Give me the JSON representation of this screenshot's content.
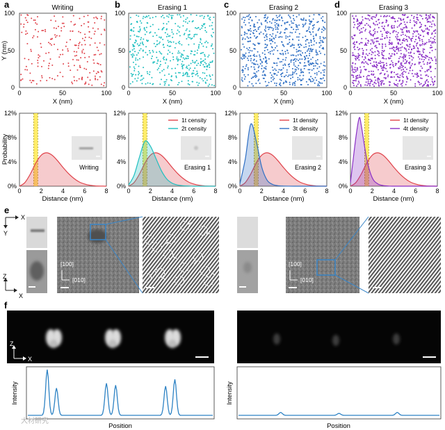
{
  "panel_letters": [
    "a",
    "b",
    "c",
    "d",
    "e",
    "f"
  ],
  "colors": {
    "writing": "#e0434b",
    "erasing1": "#1fbfc0",
    "erasing2": "#2e6fc4",
    "erasing3": "#8a2fc6",
    "reference_fill": "#f3a2a2",
    "threshold_band": "#ffe94d",
    "profile_line": "#2c82c4"
  },
  "scatter_titles": [
    "Writing",
    "Erasing 1",
    "Erasing 2",
    "Erasing 3"
  ],
  "scatter_axes": {
    "xlabel": "X (nm)",
    "ylabel": "Y (nm)",
    "xticks": [
      "0",
      "50",
      "100"
    ],
    "yticks": [
      "0",
      "50",
      "100"
    ]
  },
  "distribution_axes": {
    "xlabel": "Distance (nm)",
    "ylabel": "Probability",
    "xticks": [
      "0",
      "2",
      "4",
      "6",
      "8"
    ],
    "yticks": [
      "0%",
      "4%",
      "8%",
      "12%"
    ]
  },
  "distribution_panels": [
    {
      "inset_label": "Writing",
      "legend": []
    },
    {
      "inset_label": "Erasing 1",
      "legend": [
        "1t censity",
        "2t censity"
      ]
    },
    {
      "inset_label": "Erasing 2",
      "legend": [
        "1t density",
        "3t density"
      ]
    },
    {
      "inset_label": "Erasing 3",
      "legend": [
        "1t density",
        "4t density"
      ]
    }
  ],
  "axes_e": {
    "x": "X",
    "y": "Y",
    "z": "Z",
    "x2": "X",
    "dir_100": "[100]",
    "dir_010": "[010]"
  },
  "axes_f": {
    "z": "Z",
    "x": "X",
    "ylabel": "Intensity",
    "xlabel": "Position",
    "watermark": "大材研究"
  },
  "chart_data": [
    {
      "type": "line",
      "title": "",
      "xlabel": "Distance (nm)",
      "ylabel": "Probability",
      "xlim": [
        0,
        8
      ],
      "ylim": [
        0,
        12
      ],
      "series": [
        {
          "x": [
            0,
            0.5,
            1,
            1.5,
            2,
            2.5,
            3,
            3.5,
            4,
            4.5,
            5,
            5.5,
            6,
            6.5,
            7,
            8
          ],
          "values": [
            0,
            0.6,
            2.0,
            3.8,
            5.1,
            5.5,
            5.1,
            4.2,
            3.1,
            2.1,
            1.3,
            0.7,
            0.35,
            0.15,
            0.05,
            0
          ]
        }
      ]
    },
    {
      "type": "line",
      "title": "",
      "xlabel": "Distance (nm)",
      "ylabel": "Probability",
      "xlim": [
        0,
        8
      ],
      "ylim": [
        0,
        12
      ],
      "series": [
        {
          "name": "1t censity",
          "x": [
            0,
            0.5,
            1,
            1.5,
            2,
            2.5,
            3,
            3.5,
            4,
            4.5,
            5,
            5.5,
            6,
            6.5,
            7,
            8
          ],
          "values": [
            0,
            0.6,
            2.0,
            3.8,
            5.1,
            5.5,
            5.1,
            4.2,
            3.1,
            2.1,
            1.3,
            0.7,
            0.35,
            0.15,
            0.05,
            0
          ]
        },
        {
          "name": "2t censity",
          "x": [
            0,
            0.5,
            1,
            1.5,
            2,
            2.5,
            3,
            3.5,
            4,
            4.5,
            5,
            5.5,
            6,
            7,
            8
          ],
          "values": [
            0.2,
            1.8,
            4.8,
            7.4,
            6.6,
            4.6,
            2.6,
            1.2,
            0.5,
            0.2,
            0.08,
            0.03,
            0,
            0,
            0
          ]
        }
      ]
    },
    {
      "type": "line",
      "title": "",
      "xlabel": "Distance (nm)",
      "ylabel": "Probability",
      "xlim": [
        0,
        8
      ],
      "ylim": [
        0,
        12
      ],
      "series": [
        {
          "name": "1t density",
          "x": [
            0,
            0.5,
            1,
            1.5,
            2,
            2.5,
            3,
            3.5,
            4,
            4.5,
            5,
            5.5,
            6,
            6.5,
            7,
            8
          ],
          "values": [
            0,
            0.6,
            2.0,
            3.8,
            5.1,
            5.5,
            5.1,
            4.2,
            3.1,
            2.1,
            1.3,
            0.7,
            0.35,
            0.15,
            0.05,
            0
          ]
        },
        {
          "name": "3t density",
          "x": [
            0,
            0.5,
            1,
            1.5,
            2,
            2.5,
            3,
            3.5,
            4,
            5,
            6,
            7,
            8
          ],
          "values": [
            0.4,
            4.5,
            10.2,
            7.5,
            3.2,
            1.0,
            0.3,
            0.08,
            0.02,
            0,
            0,
            0,
            0
          ]
        }
      ]
    },
    {
      "type": "line",
      "title": "",
      "xlabel": "Distance (nm)",
      "ylabel": "Probability",
      "xlim": [
        0,
        8
      ],
      "ylim": [
        0,
        12
      ],
      "series": [
        {
          "name": "1t density",
          "x": [
            0,
            0.5,
            1,
            1.5,
            2,
            2.5,
            3,
            3.5,
            4,
            4.5,
            5,
            5.5,
            6,
            6.5,
            7,
            8
          ],
          "values": [
            0,
            0.6,
            2.0,
            3.8,
            5.1,
            5.5,
            5.1,
            4.2,
            3.1,
            2.1,
            1.3,
            0.7,
            0.35,
            0.15,
            0.05,
            0
          ]
        },
        {
          "name": "4t density",
          "x": [
            0,
            0.5,
            0.8,
            1,
            1.5,
            2,
            2.5,
            3,
            3.5,
            4,
            5,
            6,
            8
          ],
          "values": [
            0.6,
            8.0,
            11.2,
            10.0,
            4.5,
            1.4,
            0.4,
            0.1,
            0.02,
            0,
            0,
            0,
            0
          ]
        }
      ]
    }
  ]
}
